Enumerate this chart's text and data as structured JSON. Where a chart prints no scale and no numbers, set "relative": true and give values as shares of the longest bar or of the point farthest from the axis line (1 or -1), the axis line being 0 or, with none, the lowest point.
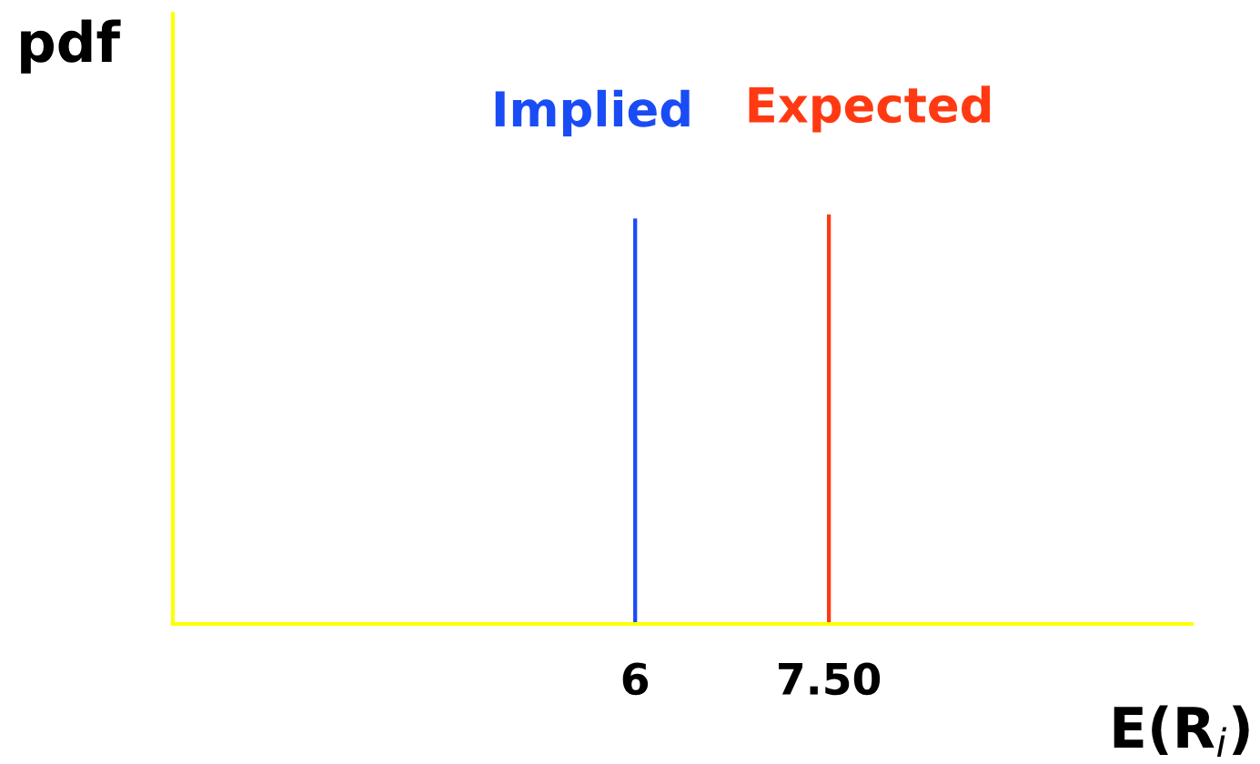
{
  "chart_data": {
    "type": "bar",
    "relative": true,
    "xlabel": "E(R$_{i}$)",
    "ylabel": "pdf",
    "xlim": [
      2.42,
      10.31
    ],
    "xticks": [
      6,
      {
        "value": 7.5,
        "label": "7.50"
      }
    ],
    "grid": false,
    "legend": false,
    "series": [
      {
        "name": "Implied",
        "color": "#1a4cf5",
        "x": [
          6
        ],
        "values": [
          0.99
        ]
      },
      {
        "name": "Expected",
        "color": "#ff3a12",
        "x": [
          7.5
        ],
        "values": [
          1
        ]
      }
    ]
  }
}
